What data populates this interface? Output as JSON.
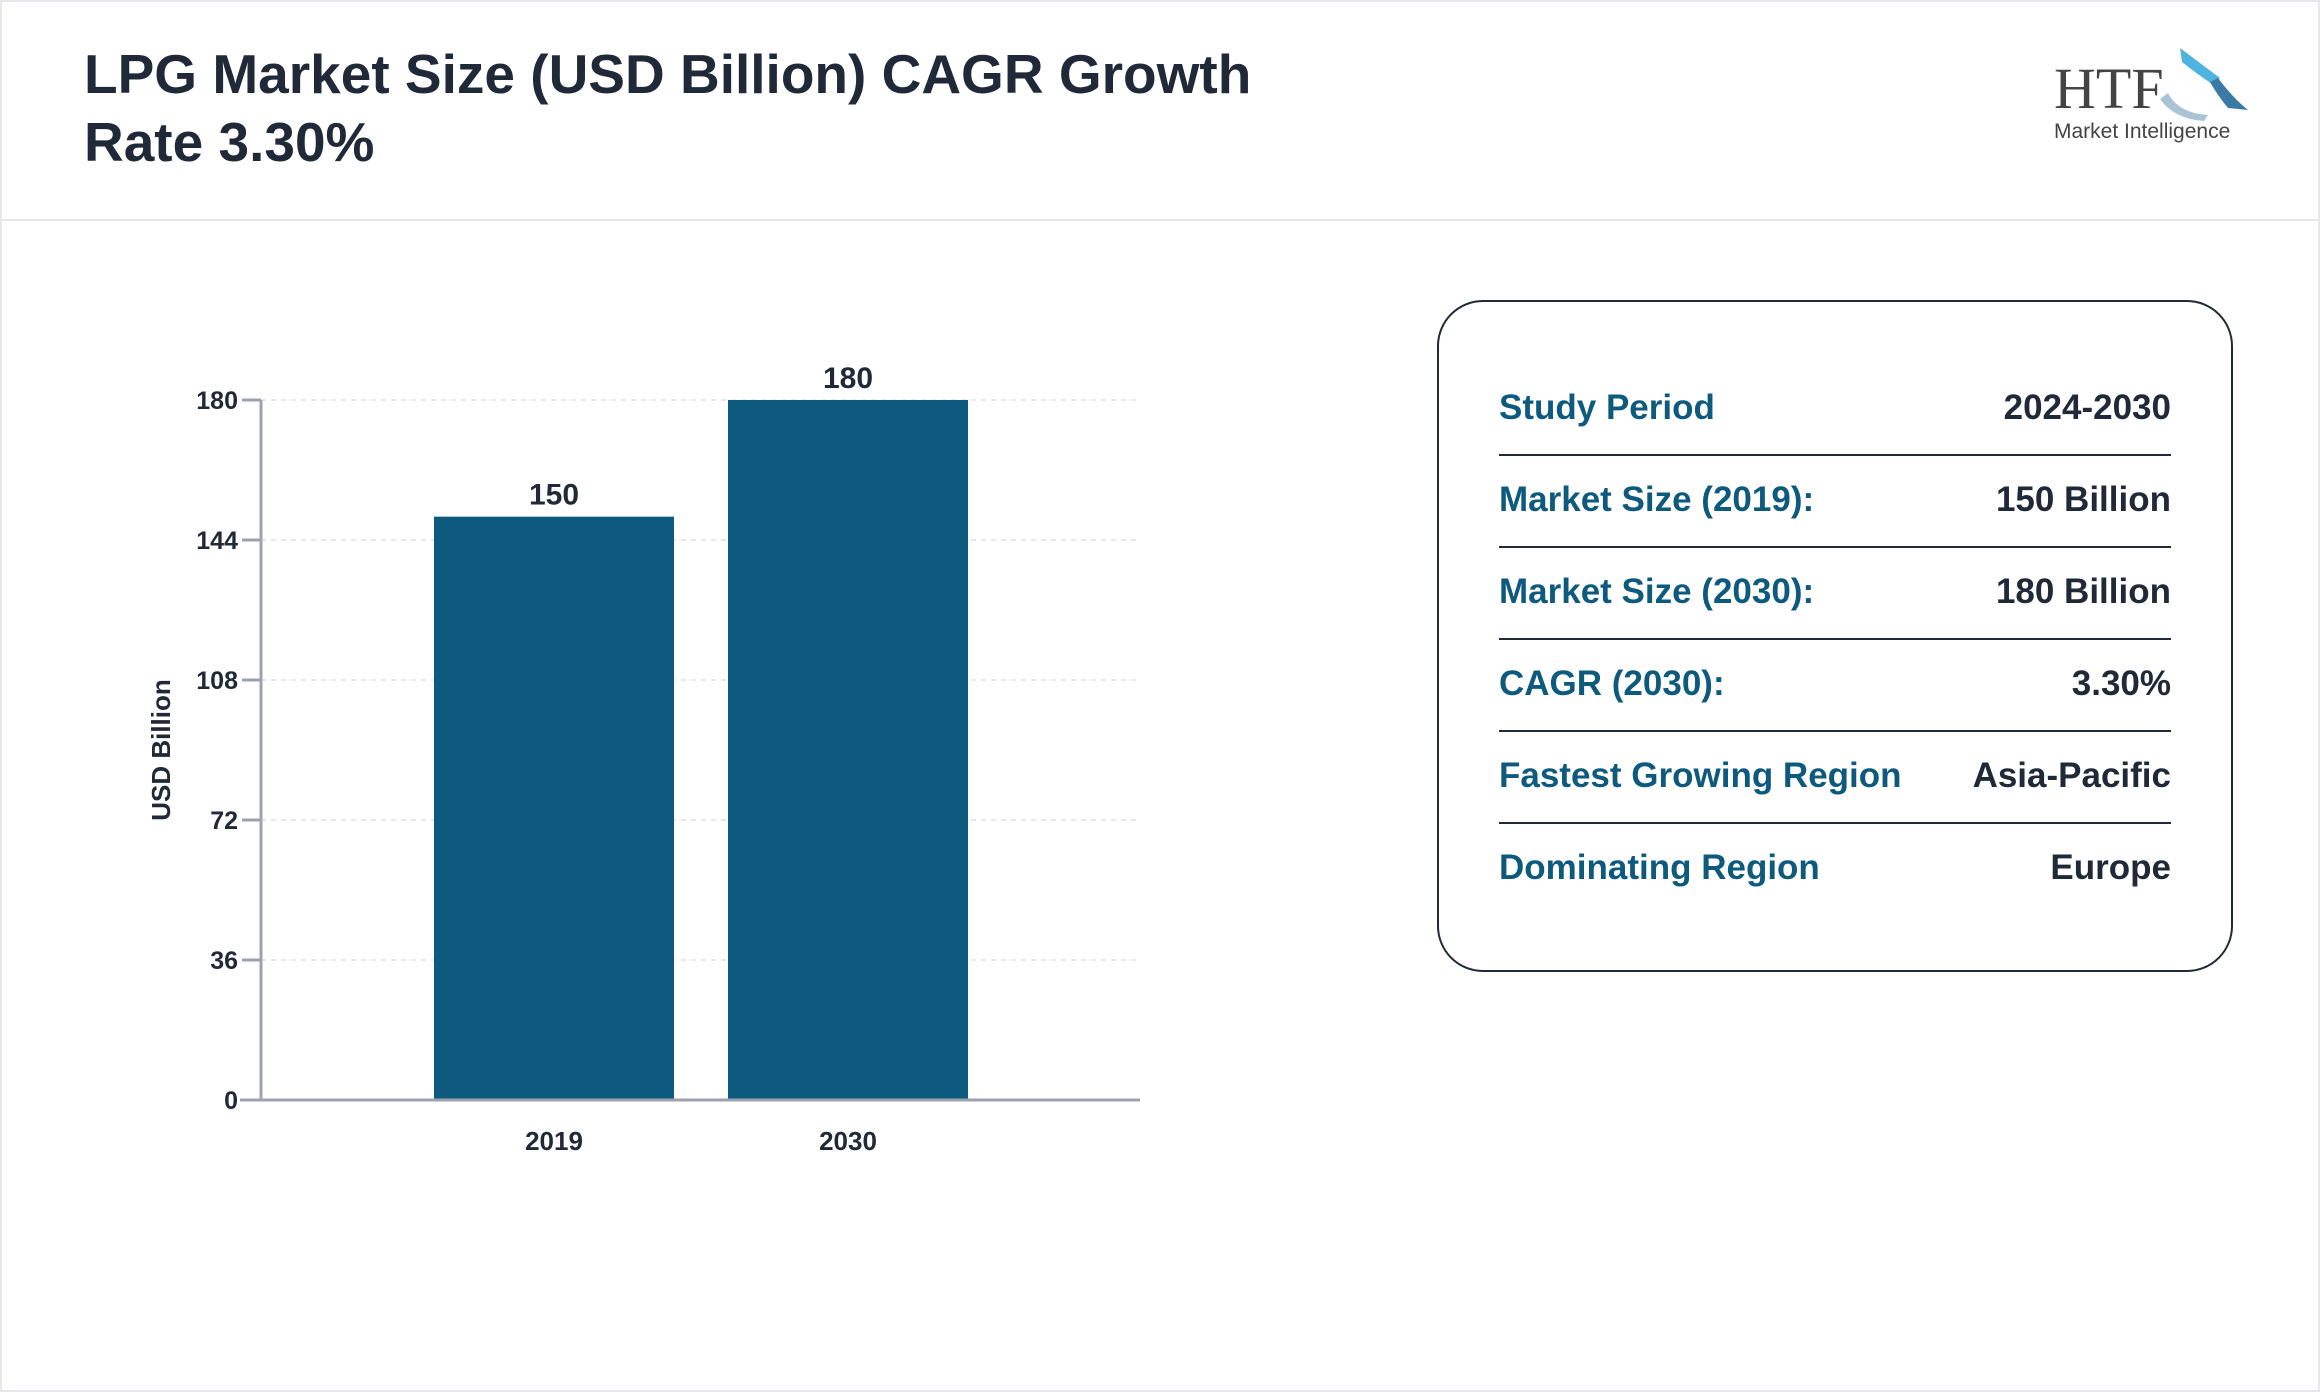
{
  "header": {
    "title": "LPG Market Size (USD Billion) CAGR Growth Rate 3.30%",
    "logo_text": "HTF",
    "logo_subtext": "Market Intelligence"
  },
  "chart_data": {
    "type": "bar",
    "categories": [
      "2019",
      "2030"
    ],
    "values": [
      150,
      180
    ],
    "data_labels": [
      "150",
      "180"
    ],
    "title": "",
    "xlabel": "",
    "ylabel": "USD Billion",
    "ylim": [
      0,
      180
    ],
    "yticks": [
      0,
      36,
      72,
      108,
      144,
      180
    ],
    "grid": true,
    "bar_color": "#0e5a7e"
  },
  "summary": {
    "rows": [
      {
        "label": "Study Period",
        "value": "2024-2030"
      },
      {
        "label": "Market Size (2019):",
        "value": "150 Billion"
      },
      {
        "label": "Market Size (2030):",
        "value": "180 Billion"
      },
      {
        "label": "CAGR (2030):",
        "value": "3.30%"
      },
      {
        "label": "Fastest Growing Region",
        "value": "Asia-Pacific"
      },
      {
        "label": "Dominating Region",
        "value": "Europe"
      }
    ]
  },
  "colors": {
    "accent": "#0e5a7e",
    "text": "#1f2937"
  }
}
